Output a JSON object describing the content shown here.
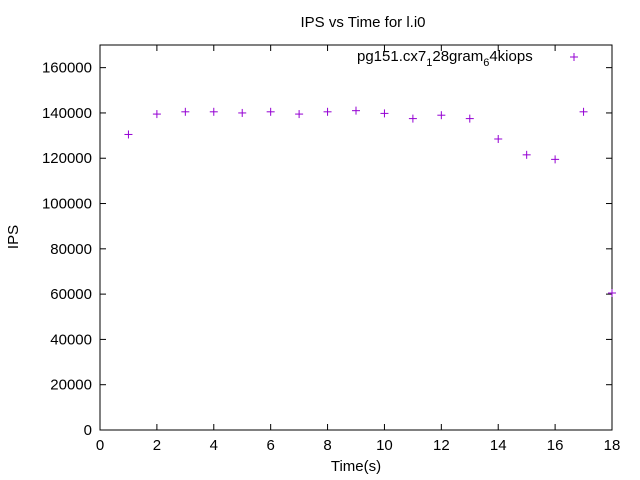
{
  "chart_data": {
    "type": "scatter",
    "title": "IPS vs Time for l.i0",
    "xlabel": "Time(s)",
    "ylabel": "IPS",
    "xlim": [
      0,
      18
    ],
    "ylim": [
      0,
      170000
    ],
    "xticks": [
      0,
      2,
      4,
      6,
      8,
      10,
      12,
      14,
      16,
      18
    ],
    "yticks": [
      0,
      20000,
      40000,
      60000,
      80000,
      100000,
      120000,
      140000,
      160000
    ],
    "grid": false,
    "legend_position": "top-right",
    "series": [
      {
        "name": "pg151.cx7_128gram_64kiops",
        "legend_label": {
          "p1": "pg151.cx7",
          "sub1": "1",
          "p2": "28gram",
          "sub2": "6",
          "p3": "4kiops"
        },
        "color": "#9400d3",
        "marker": "plus",
        "points": [
          {
            "x": 1,
            "y": 130500
          },
          {
            "x": 2,
            "y": 139500
          },
          {
            "x": 3,
            "y": 140500
          },
          {
            "x": 4,
            "y": 140500
          },
          {
            "x": 5,
            "y": 140000
          },
          {
            "x": 6,
            "y": 140500
          },
          {
            "x": 7,
            "y": 139500
          },
          {
            "x": 8,
            "y": 140500
          },
          {
            "x": 9,
            "y": 141000
          },
          {
            "x": 10,
            "y": 139800
          },
          {
            "x": 11,
            "y": 137500
          },
          {
            "x": 12,
            "y": 139000
          },
          {
            "x": 13,
            "y": 137500
          },
          {
            "x": 14,
            "y": 128500
          },
          {
            "x": 15,
            "y": 121500
          },
          {
            "x": 16,
            "y": 119500
          },
          {
            "x": 17,
            "y": 140500
          },
          {
            "x": 18,
            "y": 60500
          }
        ]
      }
    ]
  }
}
